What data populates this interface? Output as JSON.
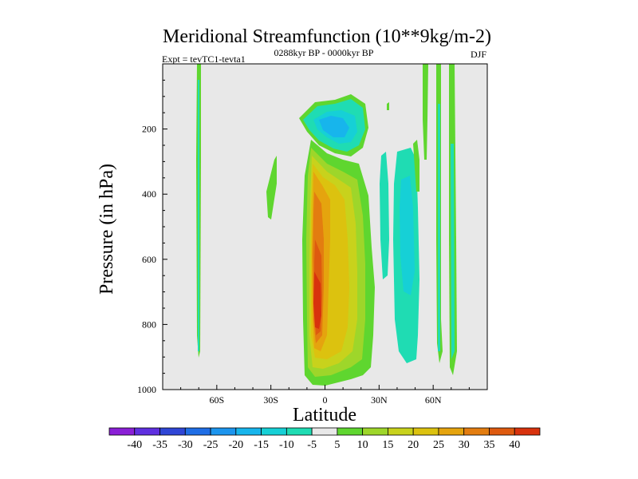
{
  "chart_data": {
    "type": "filled-contour",
    "title": "Meridional Streamfunction (10**9kg/m-2)",
    "subtitle_left": "Expt = tevTC1-tevta1",
    "subtitle_center": "0288kyr BP - 0000kyr BP",
    "subtitle_right": "DJF",
    "xlabel": "Latitude",
    "ylabel": "Pressure (in hPa)",
    "xlim": [
      -90,
      90
    ],
    "ylim": [
      1000,
      0
    ],
    "x_ticks": [
      {
        "value": -60,
        "label": "60S"
      },
      {
        "value": -30,
        "label": "30S"
      },
      {
        "value": 0,
        "label": "0"
      },
      {
        "value": 30,
        "label": "30N"
      },
      {
        "value": 60,
        "label": "60N"
      }
    ],
    "y_ticks": [
      {
        "value": 200,
        "label": "200"
      },
      {
        "value": 400,
        "label": "400"
      },
      {
        "value": 600,
        "label": "600"
      },
      {
        "value": 800,
        "label": "800"
      },
      {
        "value": 1000,
        "label": "1000"
      }
    ],
    "colorbar": {
      "labels": [
        "-40",
        "-35",
        "-30",
        "-25",
        "-20",
        "-15",
        "-10",
        "-5",
        "5",
        "10",
        "15",
        "20",
        "25",
        "30",
        "35",
        "40"
      ],
      "colors": [
        "#8a1fd6",
        "#5f2fe0",
        "#2f46d6",
        "#1f6ee6",
        "#1c95ee",
        "#17b5ec",
        "#16d0d6",
        "#1fdcb3",
        "#e8e8e8",
        "#5fd62f",
        "#9ed62a",
        "#c8d21c",
        "#dcc20f",
        "#e5a40e",
        "#e37d10",
        "#de5a0f",
        "#d8320d"
      ]
    },
    "regions": [
      {
        "name": "positive-core",
        "max_value": 40,
        "center_lat": -3,
        "center_p": 750
      },
      {
        "name": "negative-upper",
        "min_value": -20,
        "center_lat": 5,
        "center_p": 180
      },
      {
        "name": "negative-nh-midlat",
        "min_value": -15,
        "center_lat": 45,
        "center_p": 500
      }
    ]
  }
}
